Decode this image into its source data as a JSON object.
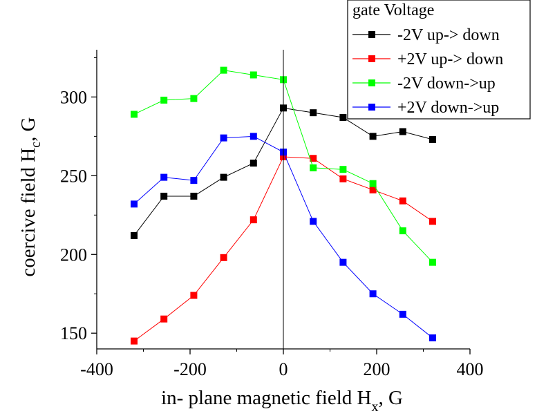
{
  "chart_data": {
    "type": "line",
    "xlabel": {
      "main": "in- plane magnetic field H",
      "sub": "x",
      "unit": ", G"
    },
    "ylabel": {
      "main": "coercive field H",
      "sub": "c",
      "unit": ", G"
    },
    "xlim": [
      -400,
      400
    ],
    "ylim": [
      140,
      330
    ],
    "xticks": [
      -400,
      -200,
      0,
      200,
      400
    ],
    "yticks": [
      150,
      200,
      250,
      300
    ],
    "zero_line": true,
    "legend": {
      "title": "gate Voltage",
      "position": "top-right"
    },
    "series": [
      {
        "name": "-2V up-> down",
        "color": "#000000",
        "points": [
          [
            -320,
            212
          ],
          [
            -256,
            237
          ],
          [
            -192,
            237
          ],
          [
            -128,
            249
          ],
          [
            -64,
            258
          ],
          [
            0,
            293
          ],
          [
            64,
            290
          ],
          [
            128,
            287
          ],
          [
            192,
            275
          ],
          [
            256,
            278
          ],
          [
            320,
            273
          ]
        ]
      },
      {
        "name": "+2V up-> down",
        "color": "#ff0000",
        "points": [
          [
            -320,
            145
          ],
          [
            -256,
            159
          ],
          [
            -192,
            174
          ],
          [
            -128,
            198
          ],
          [
            -64,
            222
          ],
          [
            0,
            262
          ],
          [
            64,
            261
          ],
          [
            128,
            248
          ],
          [
            192,
            241
          ],
          [
            256,
            234
          ],
          [
            320,
            221
          ]
        ]
      },
      {
        "name": "-2V down->up",
        "color": "#00ff00",
        "points": [
          [
            -320,
            289
          ],
          [
            -256,
            298
          ],
          [
            -192,
            299
          ],
          [
            -128,
            317
          ],
          [
            -64,
            314
          ],
          [
            0,
            311
          ],
          [
            64,
            255
          ],
          [
            128,
            254
          ],
          [
            192,
            245
          ],
          [
            256,
            215
          ],
          [
            320,
            195
          ]
        ]
      },
      {
        "name": "+2V down->up",
        "color": "#0000ff",
        "points": [
          [
            -320,
            232
          ],
          [
            -256,
            249
          ],
          [
            -192,
            247
          ],
          [
            -128,
            274
          ],
          [
            -64,
            275
          ],
          [
            0,
            265
          ],
          [
            64,
            221
          ],
          [
            128,
            195
          ],
          [
            192,
            175
          ],
          [
            256,
            162
          ],
          [
            320,
            147
          ]
        ]
      }
    ]
  }
}
